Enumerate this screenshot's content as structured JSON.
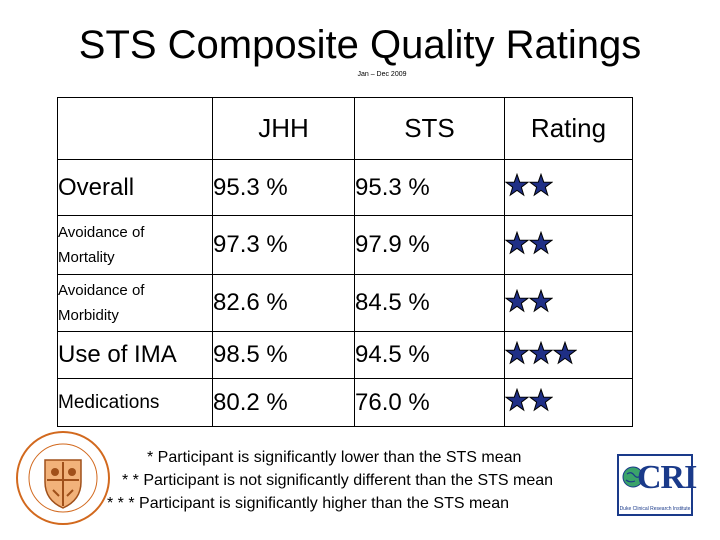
{
  "title": "STS Composite Quality Ratings",
  "subtitle": "Jan – Dec 2009",
  "table": {
    "headers": [
      "",
      "JHH",
      "STS",
      "Rating"
    ],
    "rows": [
      {
        "label_line1": "Overall",
        "label_line2": "",
        "jhh": "95.3 %",
        "sts": "95.3 %",
        "stars": 2
      },
      {
        "label_line1": "Avoidance of",
        "label_line2": "Mortality",
        "jhh": "97.3 %",
        "sts": "97.9 %",
        "stars": 2
      },
      {
        "label_line1": "Avoidance of",
        "label_line2": "Morbidity",
        "jhh": "82.6 %",
        "sts": "84.5 %",
        "stars": 2
      },
      {
        "label_line1": "Use of IMA",
        "label_line2": "",
        "jhh": "98.5 %",
        "sts": "94.5 %",
        "stars": 3
      },
      {
        "label_line1": "Medications",
        "label_line2": "",
        "jhh": "80.2 %",
        "sts": "76.0 %",
        "stars": 2
      }
    ]
  },
  "legend": [
    "* Participant is significantly lower than the STS mean",
    "* * Participant is not significantly different than the STS mean",
    "* * * Participant is significantly higher than the STS mean"
  ],
  "logos": {
    "left": "society-seal-logo",
    "right_text": "CRI",
    "right_sub": "Duke Clinical Research Institute"
  },
  "colors": {
    "star_fill": "#1f2f86",
    "star_stroke": "#000000",
    "cri_blue": "#1a3a8a",
    "seal_orange": "#d2691e"
  }
}
